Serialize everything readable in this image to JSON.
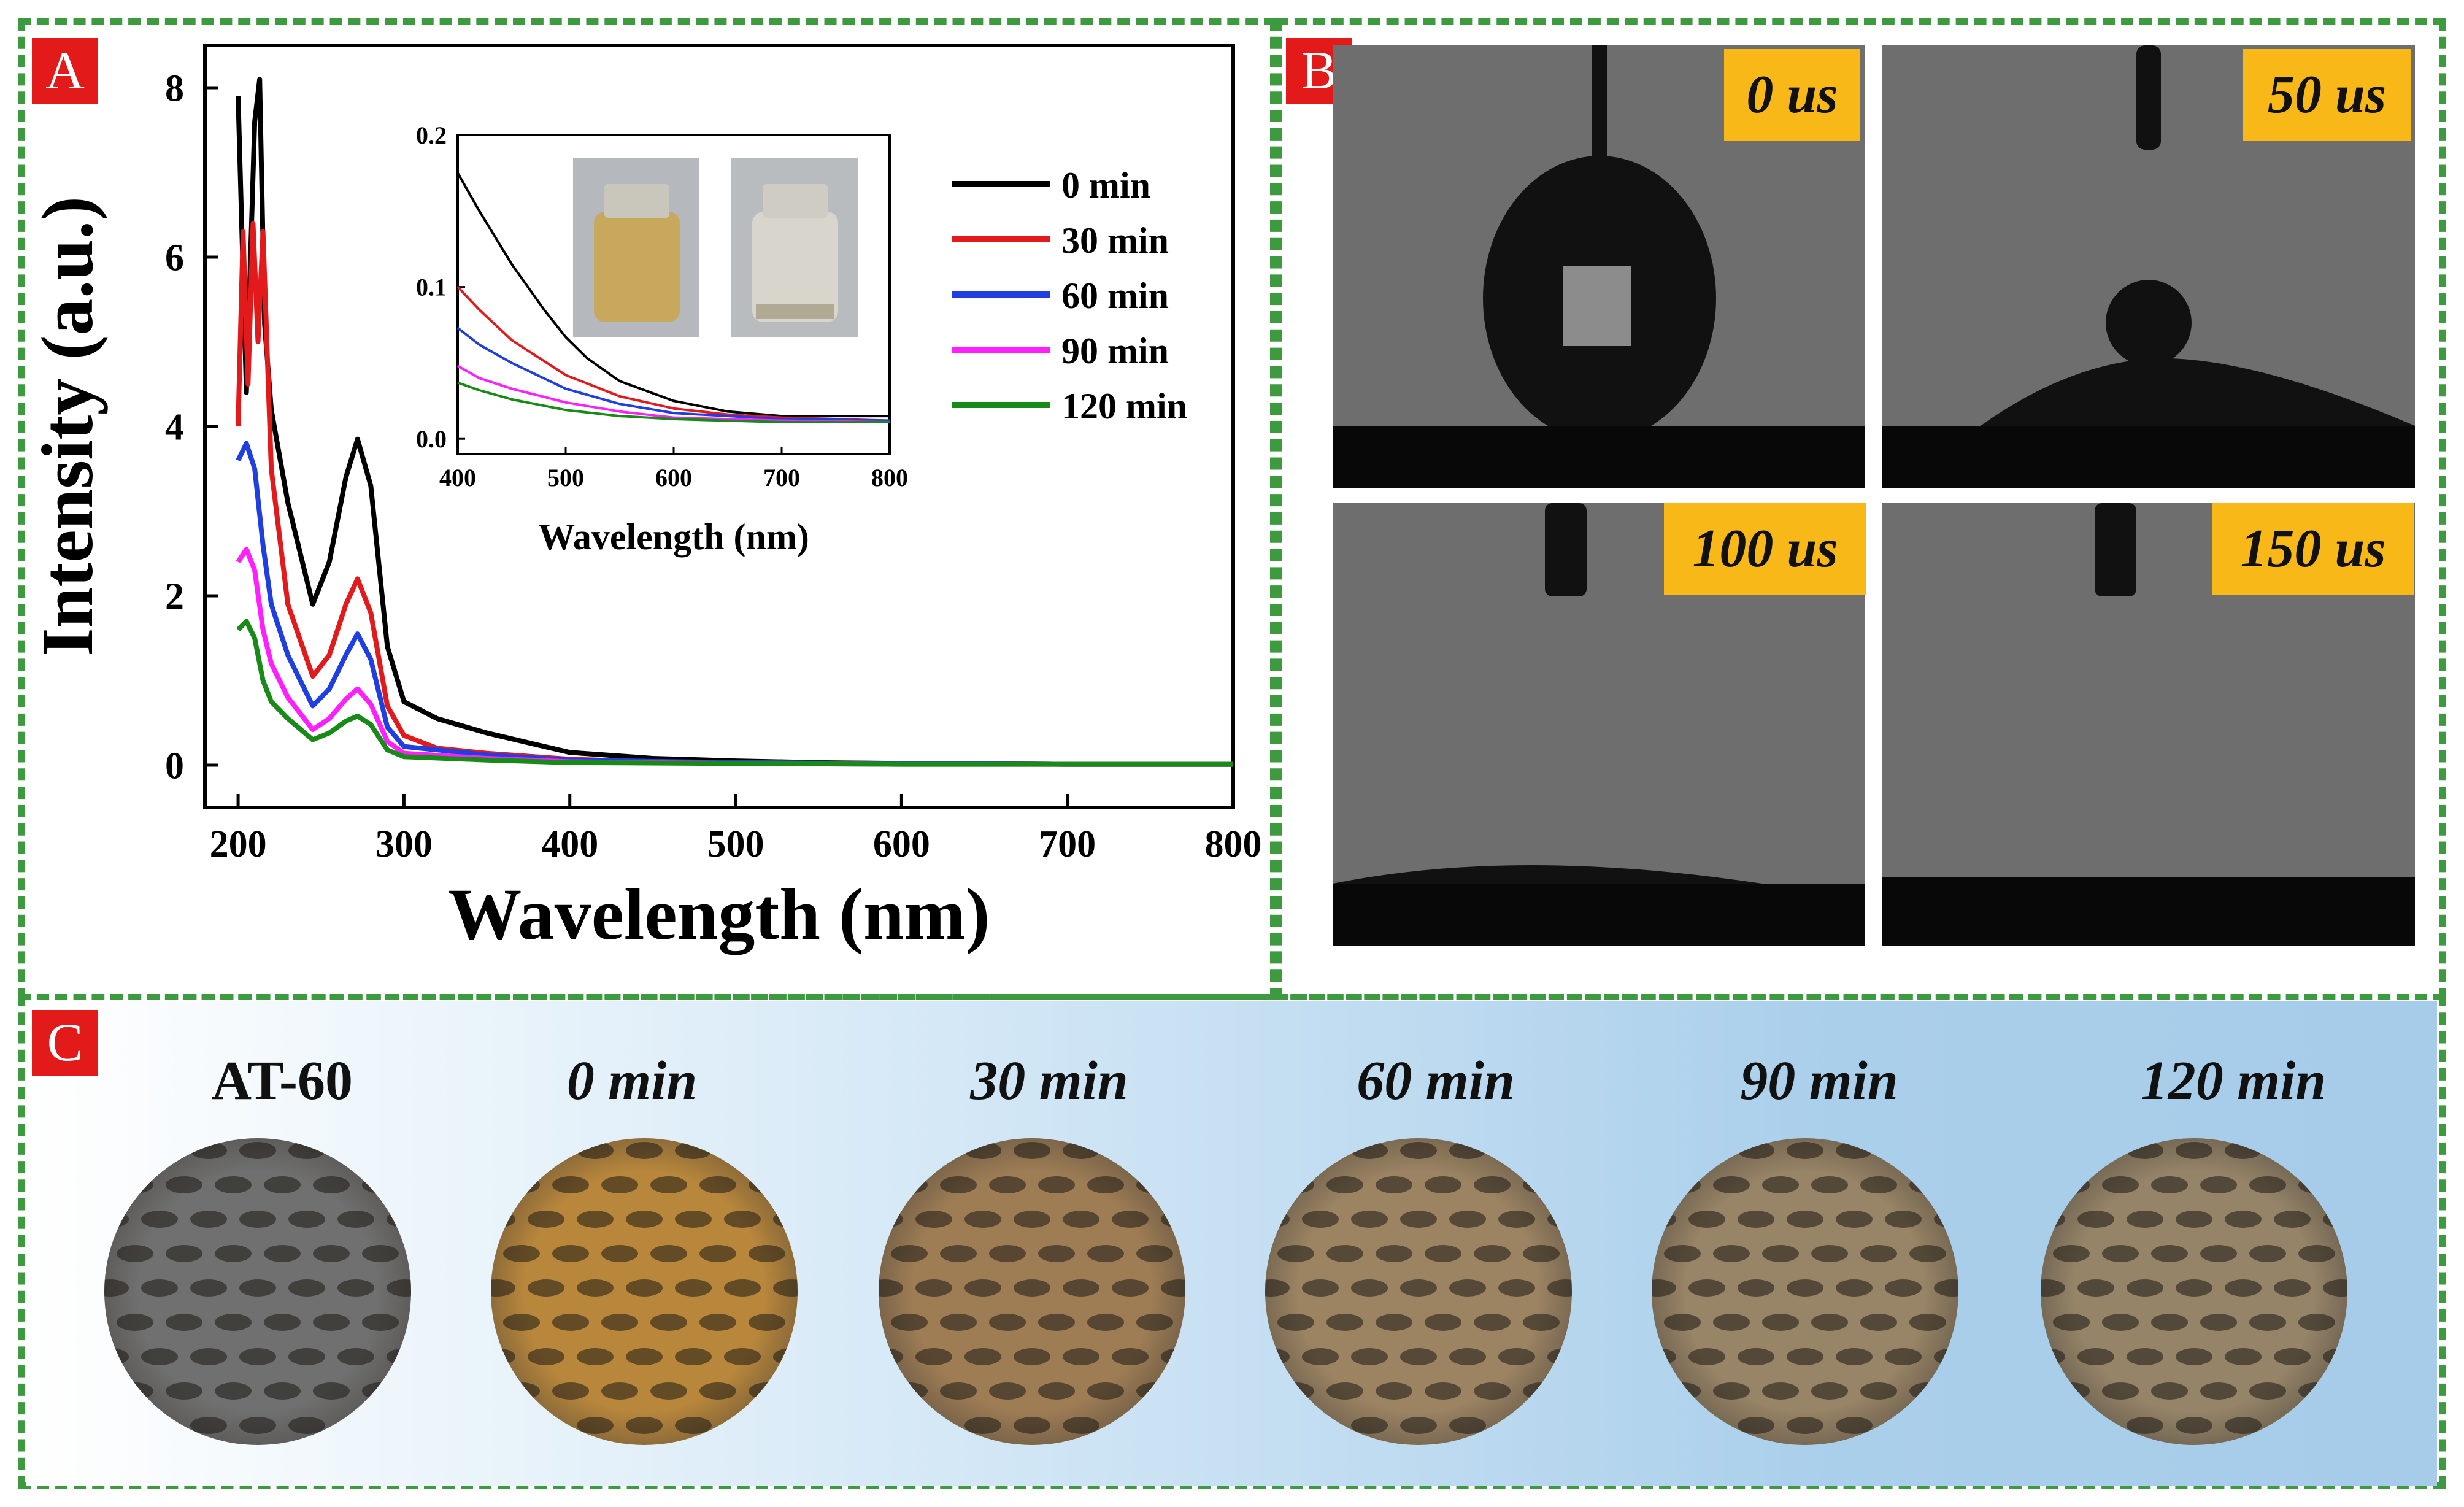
{
  "panels": {
    "a": "A",
    "b": "B",
    "c": "C"
  },
  "chart_data": {
    "main": {
      "type": "line",
      "title": "",
      "xlabel": "Wavelength (nm)",
      "ylabel": "Intensity (a.u.)",
      "xlim": [
        180,
        800
      ],
      "ylim": [
        -0.5,
        8.5
      ],
      "xticks": [
        200,
        300,
        400,
        500,
        600,
        700,
        800
      ],
      "yticks": [
        0,
        2,
        4,
        6,
        8
      ],
      "legend_position": "top-right",
      "series": [
        {
          "name": "0 min",
          "color": "#000000",
          "x": [
            200,
            205,
            210,
            213,
            216,
            220,
            230,
            245,
            255,
            265,
            272,
            280,
            290,
            300,
            320,
            350,
            400,
            450,
            500,
            550,
            600,
            700,
            800
          ],
          "y": [
            7.9,
            4.4,
            7.6,
            8.1,
            5.2,
            4.2,
            3.1,
            1.9,
            2.4,
            3.4,
            3.85,
            3.3,
            1.4,
            0.75,
            0.55,
            0.38,
            0.15,
            0.08,
            0.05,
            0.03,
            0.02,
            0.01,
            0.01
          ]
        },
        {
          "name": "30 min",
          "color": "#e31a1c",
          "x": [
            200,
            203,
            206,
            209,
            212,
            215,
            220,
            230,
            245,
            255,
            265,
            272,
            280,
            290,
            300,
            320,
            350,
            400,
            450,
            500,
            600,
            700,
            800
          ],
          "y": [
            4.0,
            6.3,
            4.5,
            6.4,
            5.0,
            6.3,
            3.5,
            1.9,
            1.05,
            1.3,
            1.9,
            2.2,
            1.8,
            0.7,
            0.35,
            0.2,
            0.14,
            0.07,
            0.04,
            0.03,
            0.02,
            0.01,
            0.01
          ]
        },
        {
          "name": "60 min",
          "color": "#1f3fe0",
          "x": [
            200,
            205,
            210,
            215,
            220,
            230,
            245,
            255,
            265,
            272,
            280,
            290,
            300,
            350,
            400,
            500,
            600,
            700,
            800
          ],
          "y": [
            3.6,
            3.8,
            3.5,
            2.6,
            1.9,
            1.3,
            0.7,
            0.9,
            1.3,
            1.55,
            1.25,
            0.45,
            0.22,
            0.12,
            0.06,
            0.03,
            0.02,
            0.01,
            0.01
          ]
        },
        {
          "name": "90 min",
          "color": "#ff1fff",
          "x": [
            200,
            205,
            210,
            215,
            220,
            230,
            245,
            255,
            265,
            272,
            280,
            290,
            300,
            350,
            400,
            500,
            600,
            700,
            800
          ],
          "y": [
            2.4,
            2.55,
            2.3,
            1.6,
            1.2,
            0.8,
            0.42,
            0.55,
            0.78,
            0.9,
            0.72,
            0.28,
            0.14,
            0.08,
            0.04,
            0.02,
            0.01,
            0.01,
            0.01
          ]
        },
        {
          "name": "120 min",
          "color": "#178a17",
          "x": [
            200,
            205,
            210,
            215,
            220,
            230,
            245,
            255,
            265,
            272,
            280,
            290,
            300,
            350,
            400,
            500,
            600,
            700,
            800
          ],
          "y": [
            1.6,
            1.7,
            1.5,
            1.0,
            0.75,
            0.55,
            0.3,
            0.38,
            0.52,
            0.58,
            0.48,
            0.18,
            0.1,
            0.06,
            0.03,
            0.02,
            0.01,
            0.01,
            0.01
          ]
        }
      ]
    },
    "inset": {
      "type": "line",
      "xlabel": "Wavelength (nm)",
      "xlim": [
        400,
        800
      ],
      "ylim": [
        -0.01,
        0.2
      ],
      "xticks": [
        400,
        500,
        600,
        700,
        800
      ],
      "yticks": [
        0.0,
        0.1,
        0.2
      ],
      "series": [
        {
          "name": "0 min",
          "color": "#000000",
          "x": [
            400,
            420,
            450,
            480,
            500,
            520,
            550,
            600,
            650,
            700,
            750,
            800
          ],
          "y": [
            0.175,
            0.15,
            0.115,
            0.085,
            0.067,
            0.053,
            0.038,
            0.025,
            0.018,
            0.015,
            0.015,
            0.015
          ]
        },
        {
          "name": "30 min",
          "color": "#e31a1c",
          "x": [
            400,
            420,
            450,
            500,
            550,
            600,
            650,
            700,
            800
          ],
          "y": [
            0.1,
            0.085,
            0.065,
            0.042,
            0.028,
            0.02,
            0.016,
            0.014,
            0.012
          ]
        },
        {
          "name": "60 min",
          "color": "#1f3fe0",
          "x": [
            400,
            420,
            450,
            500,
            550,
            600,
            700,
            800
          ],
          "y": [
            0.073,
            0.062,
            0.05,
            0.033,
            0.023,
            0.017,
            0.013,
            0.012
          ]
        },
        {
          "name": "90 min",
          "color": "#ff1fff",
          "x": [
            400,
            420,
            450,
            500,
            550,
            600,
            700,
            800
          ],
          "y": [
            0.048,
            0.04,
            0.033,
            0.024,
            0.018,
            0.014,
            0.012,
            0.011
          ]
        },
        {
          "name": "120 min",
          "color": "#178a17",
          "x": [
            400,
            420,
            450,
            500,
            550,
            600,
            700,
            800
          ],
          "y": [
            0.037,
            0.032,
            0.026,
            0.019,
            0.015,
            0.013,
            0.011,
            0.011
          ]
        }
      ]
    }
  },
  "panel_b": {
    "frames": [
      {
        "time": "0 us"
      },
      {
        "time": "50 us"
      },
      {
        "time": "100 us"
      },
      {
        "time": "150 us"
      }
    ]
  },
  "panel_c": {
    "samples": [
      {
        "label": "AT-60",
        "italic": false,
        "color": "#707070"
      },
      {
        "label": "0 min",
        "italic": true,
        "color": "#b9873c"
      },
      {
        "label": "30 min",
        "italic": true,
        "color": "#9e7d55"
      },
      {
        "label": "60 min",
        "italic": true,
        "color": "#9c8463"
      },
      {
        "label": "90 min",
        "italic": true,
        "color": "#988466"
      },
      {
        "label": "120 min",
        "italic": true,
        "color": "#958468"
      }
    ]
  }
}
